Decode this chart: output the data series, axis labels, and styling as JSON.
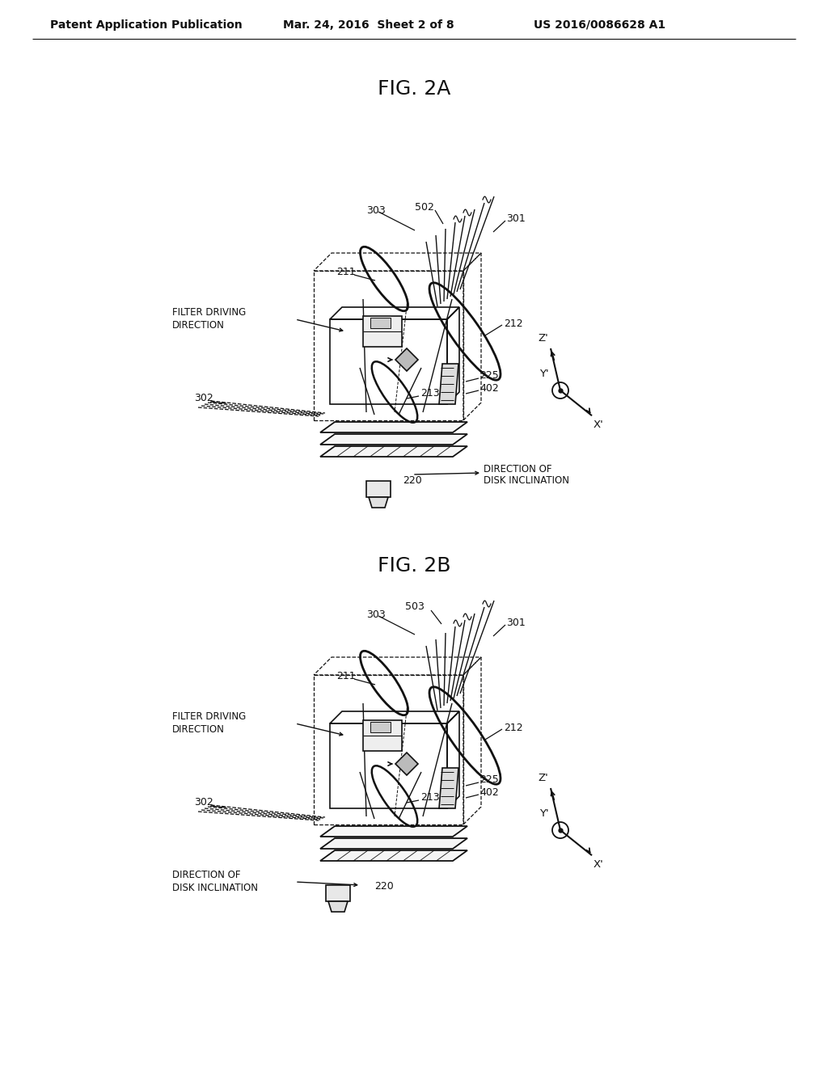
{
  "bg_color": "#ffffff",
  "header_left": "Patent Application Publication",
  "header_mid": "Mar. 24, 2016  Sheet 2 of 8",
  "header_right": "US 2016/0086628 A1",
  "fig2a_title": "FIG. 2A",
  "fig2b_title": "FIG. 2B",
  "text_color": "#111111",
  "line_color": "#111111"
}
